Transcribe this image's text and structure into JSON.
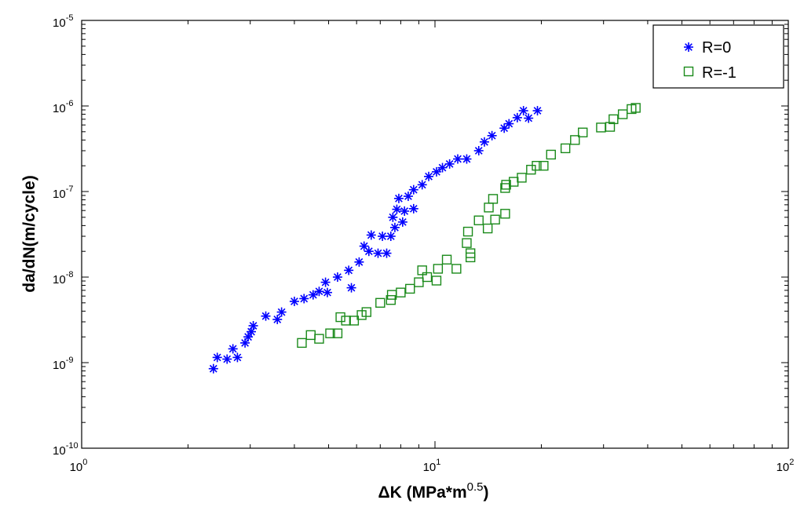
{
  "chart_data": {
    "type": "scatter",
    "title": "",
    "xlabel": "ΔK (MPa*m",
    "xlabel_exponent": "0.5",
    "xlabel_suffix": ")",
    "ylabel": "da/dN(m/cycle)",
    "xscale": "log",
    "yscale": "log",
    "xlim": [
      1,
      100
    ],
    "ylim": [
      1e-10,
      1e-05
    ],
    "x_ticks": [
      {
        "base": "10",
        "exp": "0",
        "value": 1
      },
      {
        "base": "10",
        "exp": "1",
        "value": 10
      },
      {
        "base": "10",
        "exp": "2",
        "value": 100
      }
    ],
    "y_ticks": [
      {
        "base": "10",
        "exp": "-10",
        "value": 1e-10
      },
      {
        "base": "10",
        "exp": "-9",
        "value": 1e-09
      },
      {
        "base": "10",
        "exp": "-8",
        "value": 1e-08
      },
      {
        "base": "10",
        "exp": "-7",
        "value": 1e-07
      },
      {
        "base": "10",
        "exp": "-6",
        "value": 1e-06
      },
      {
        "base": "10",
        "exp": "-5",
        "value": 1e-05
      }
    ],
    "grid": false,
    "legend_position": "top-right",
    "series": [
      {
        "name": "R=0",
        "marker": "star",
        "color": "#0000ff",
        "points": [
          [
            2.36,
            8.5e-10
          ],
          [
            2.42,
            1.15e-09
          ],
          [
            2.58,
            1.1e-09
          ],
          [
            2.68,
            1.45e-09
          ],
          [
            2.76,
            1.15e-09
          ],
          [
            2.9,
            1.7e-09
          ],
          [
            2.96,
            2e-09
          ],
          [
            3.02,
            2.3e-09
          ],
          [
            3.06,
            2.7e-09
          ],
          [
            3.32,
            3.5e-09
          ],
          [
            3.58,
            3.2e-09
          ],
          [
            3.68,
            3.9e-09
          ],
          [
            4.0,
            5.2e-09
          ],
          [
            4.26,
            5.6e-09
          ],
          [
            4.52,
            6.2e-09
          ],
          [
            4.7,
            6.8e-09
          ],
          [
            4.9,
            8.7e-09
          ],
          [
            4.96,
            6.6e-09
          ],
          [
            5.3,
            1e-08
          ],
          [
            5.7,
            1.2e-08
          ],
          [
            5.8,
            7.5e-09
          ],
          [
            6.1,
            1.5e-08
          ],
          [
            6.3,
            2.3e-08
          ],
          [
            6.5,
            2e-08
          ],
          [
            6.6,
            3.1e-08
          ],
          [
            6.9,
            1.9e-08
          ],
          [
            7.1,
            3e-08
          ],
          [
            7.3,
            1.9e-08
          ],
          [
            7.5,
            3e-08
          ],
          [
            7.7,
            3.8e-08
          ],
          [
            7.6,
            5e-08
          ],
          [
            7.8,
            6.2e-08
          ],
          [
            7.9,
            8.3e-08
          ],
          [
            8.1,
            4.4e-08
          ],
          [
            8.2,
            5.9e-08
          ],
          [
            8.4,
            8.8e-08
          ],
          [
            8.7,
            1.05e-07
          ],
          [
            8.7,
            6.3e-08
          ],
          [
            9.2,
            1.2e-07
          ],
          [
            9.6,
            1.5e-07
          ],
          [
            10.1,
            1.7e-07
          ],
          [
            10.5,
            1.9e-07
          ],
          [
            11.0,
            2.1e-07
          ],
          [
            11.6,
            2.4e-07
          ],
          [
            12.3,
            2.4e-07
          ],
          [
            13.3,
            3e-07
          ],
          [
            13.8,
            3.8e-07
          ],
          [
            14.5,
            4.5e-07
          ],
          [
            15.7,
            5.5e-07
          ],
          [
            16.2,
            6.2e-07
          ],
          [
            17.1,
            7.3e-07
          ],
          [
            17.8,
            8.8e-07
          ],
          [
            18.4,
            7.2e-07
          ],
          [
            19.5,
            8.8e-07
          ]
        ]
      },
      {
        "name": "R=-1",
        "marker": "square",
        "color": "#1a8a1a",
        "points": [
          [
            4.2,
            1.7e-09
          ],
          [
            4.45,
            2.1e-09
          ],
          [
            4.7,
            1.9e-09
          ],
          [
            5.05,
            2.2e-09
          ],
          [
            5.3,
            2.2e-09
          ],
          [
            5.4,
            3.4e-09
          ],
          [
            5.6,
            3.1e-09
          ],
          [
            5.9,
            3.1e-09
          ],
          [
            6.2,
            3.6e-09
          ],
          [
            6.4,
            3.9e-09
          ],
          [
            7.0,
            5e-09
          ],
          [
            7.5,
            5.4e-09
          ],
          [
            7.55,
            6.2e-09
          ],
          [
            8.0,
            6.6e-09
          ],
          [
            8.5,
            7.3e-09
          ],
          [
            9.0,
            8.7e-09
          ],
          [
            9.2,
            1.2e-08
          ],
          [
            9.5,
            1e-08
          ],
          [
            10.1,
            9.1e-09
          ],
          [
            10.2,
            1.25e-08
          ],
          [
            10.8,
            1.6e-08
          ],
          [
            11.5,
            1.25e-08
          ],
          [
            12.3,
            2.5e-08
          ],
          [
            12.4,
            3.4e-08
          ],
          [
            12.6,
            1.9e-08
          ],
          [
            12.6,
            1.7e-08
          ],
          [
            13.3,
            4.6e-08
          ],
          [
            14.1,
            3.7e-08
          ],
          [
            14.2,
            6.5e-08
          ],
          [
            14.6,
            8.2e-08
          ],
          [
            14.8,
            4.7e-08
          ],
          [
            15.8,
            5.5e-08
          ],
          [
            15.8,
            1.1e-07
          ],
          [
            15.9,
            1.2e-07
          ],
          [
            16.7,
            1.3e-07
          ],
          [
            17.6,
            1.45e-07
          ],
          [
            18.7,
            1.8e-07
          ],
          [
            19.4,
            2e-07
          ],
          [
            20.3,
            2e-07
          ],
          [
            21.3,
            2.7e-07
          ],
          [
            23.4,
            3.2e-07
          ],
          [
            24.9,
            4e-07
          ],
          [
            26.2,
            4.9e-07
          ],
          [
            29.5,
            5.6e-07
          ],
          [
            31.3,
            5.7e-07
          ],
          [
            32.0,
            7e-07
          ],
          [
            34.0,
            8e-07
          ],
          [
            36.0,
            9.2e-07
          ],
          [
            37.0,
            9.5e-07
          ]
        ]
      }
    ]
  }
}
